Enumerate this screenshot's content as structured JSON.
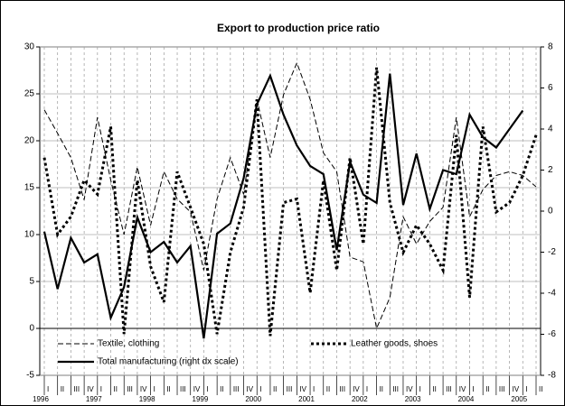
{
  "chart_data": {
    "type": "line",
    "title": "Export to production price ratio",
    "categories": [
      "I",
      "II",
      "III",
      "IV",
      "I",
      "II",
      "III",
      "IV",
      "I",
      "II",
      "III",
      "IV",
      "I",
      "II",
      "III",
      "IV",
      "I",
      "II",
      "III",
      "IV",
      "I",
      "II",
      "III",
      "IV",
      "I",
      "II",
      "III",
      "IV",
      "I",
      "II",
      "III",
      "IV",
      "I",
      "II",
      "III",
      "IV",
      "I",
      "II"
    ],
    "years": [
      "1996",
      "1997",
      "1998",
      "1999",
      "2000",
      "2001",
      "2002",
      "2003",
      "2004",
      "2005"
    ],
    "ylim": [
      -5,
      30
    ],
    "yticks": [
      -5,
      0,
      5,
      10,
      15,
      20,
      25,
      30
    ],
    "y2lim": [
      -8,
      8
    ],
    "y2ticks": [
      -8,
      -6,
      -4,
      -2,
      0,
      2,
      4,
      6,
      8
    ],
    "grid": true,
    "legend": "lower-left",
    "series": [
      {
        "name": "Textile, clothing",
        "color": "#000000",
        "style": "dashed-thin",
        "values": [
          23.3,
          20.8,
          18.2,
          13.7,
          22.5,
          15.8,
          10,
          17.2,
          11,
          16.7,
          13.8,
          12.4,
          6.2,
          13.8,
          18.2,
          14.3,
          24.4,
          18.2,
          24.9,
          28.3,
          24.4,
          18.7,
          16.7,
          7.6,
          7.1,
          0,
          3.3,
          11.9,
          9,
          11.4,
          12.9,
          22.5,
          11.9,
          14.8,
          16.3,
          16.7,
          16.3,
          15.1
        ]
      },
      {
        "name": "Leather goods, shoes",
        "color": "#000000",
        "style": "dashed-thick",
        "values": [
          18.2,
          10,
          11.9,
          15.8,
          14.3,
          21.5,
          -0.6,
          15.8,
          6.6,
          2.8,
          16.7,
          12.9,
          9,
          -0.6,
          8.1,
          12.9,
          24.4,
          -0.8,
          13.4,
          13.8,
          3.8,
          15.8,
          6.2,
          18.2,
          9,
          27.8,
          13.4,
          8.1,
          11,
          9,
          6.2,
          20.6,
          3.3,
          21.5,
          12.4,
          13.4,
          16.3,
          20.6
        ]
      },
      {
        "name": "Total manufacturing (right dx scale)",
        "color": "#000000",
        "style": "solid",
        "axis": "y2",
        "values": [
          -1.0,
          -3.8,
          -1.3,
          -2.5,
          -2.1,
          -5.2,
          -3.7,
          -0.3,
          -2.0,
          -1.5,
          -2.5,
          -1.7,
          -6.2,
          -1.1,
          -0.6,
          1.6,
          5.2,
          6.6,
          4.7,
          3.2,
          2.2,
          1.8,
          -1.9,
          2.4,
          0.8,
          0.4,
          6.7,
          0.3,
          2.8,
          0.1,
          2.0,
          1.8,
          4.7,
          3.6,
          3.1,
          4.0,
          4.9,
          null
        ]
      }
    ]
  }
}
